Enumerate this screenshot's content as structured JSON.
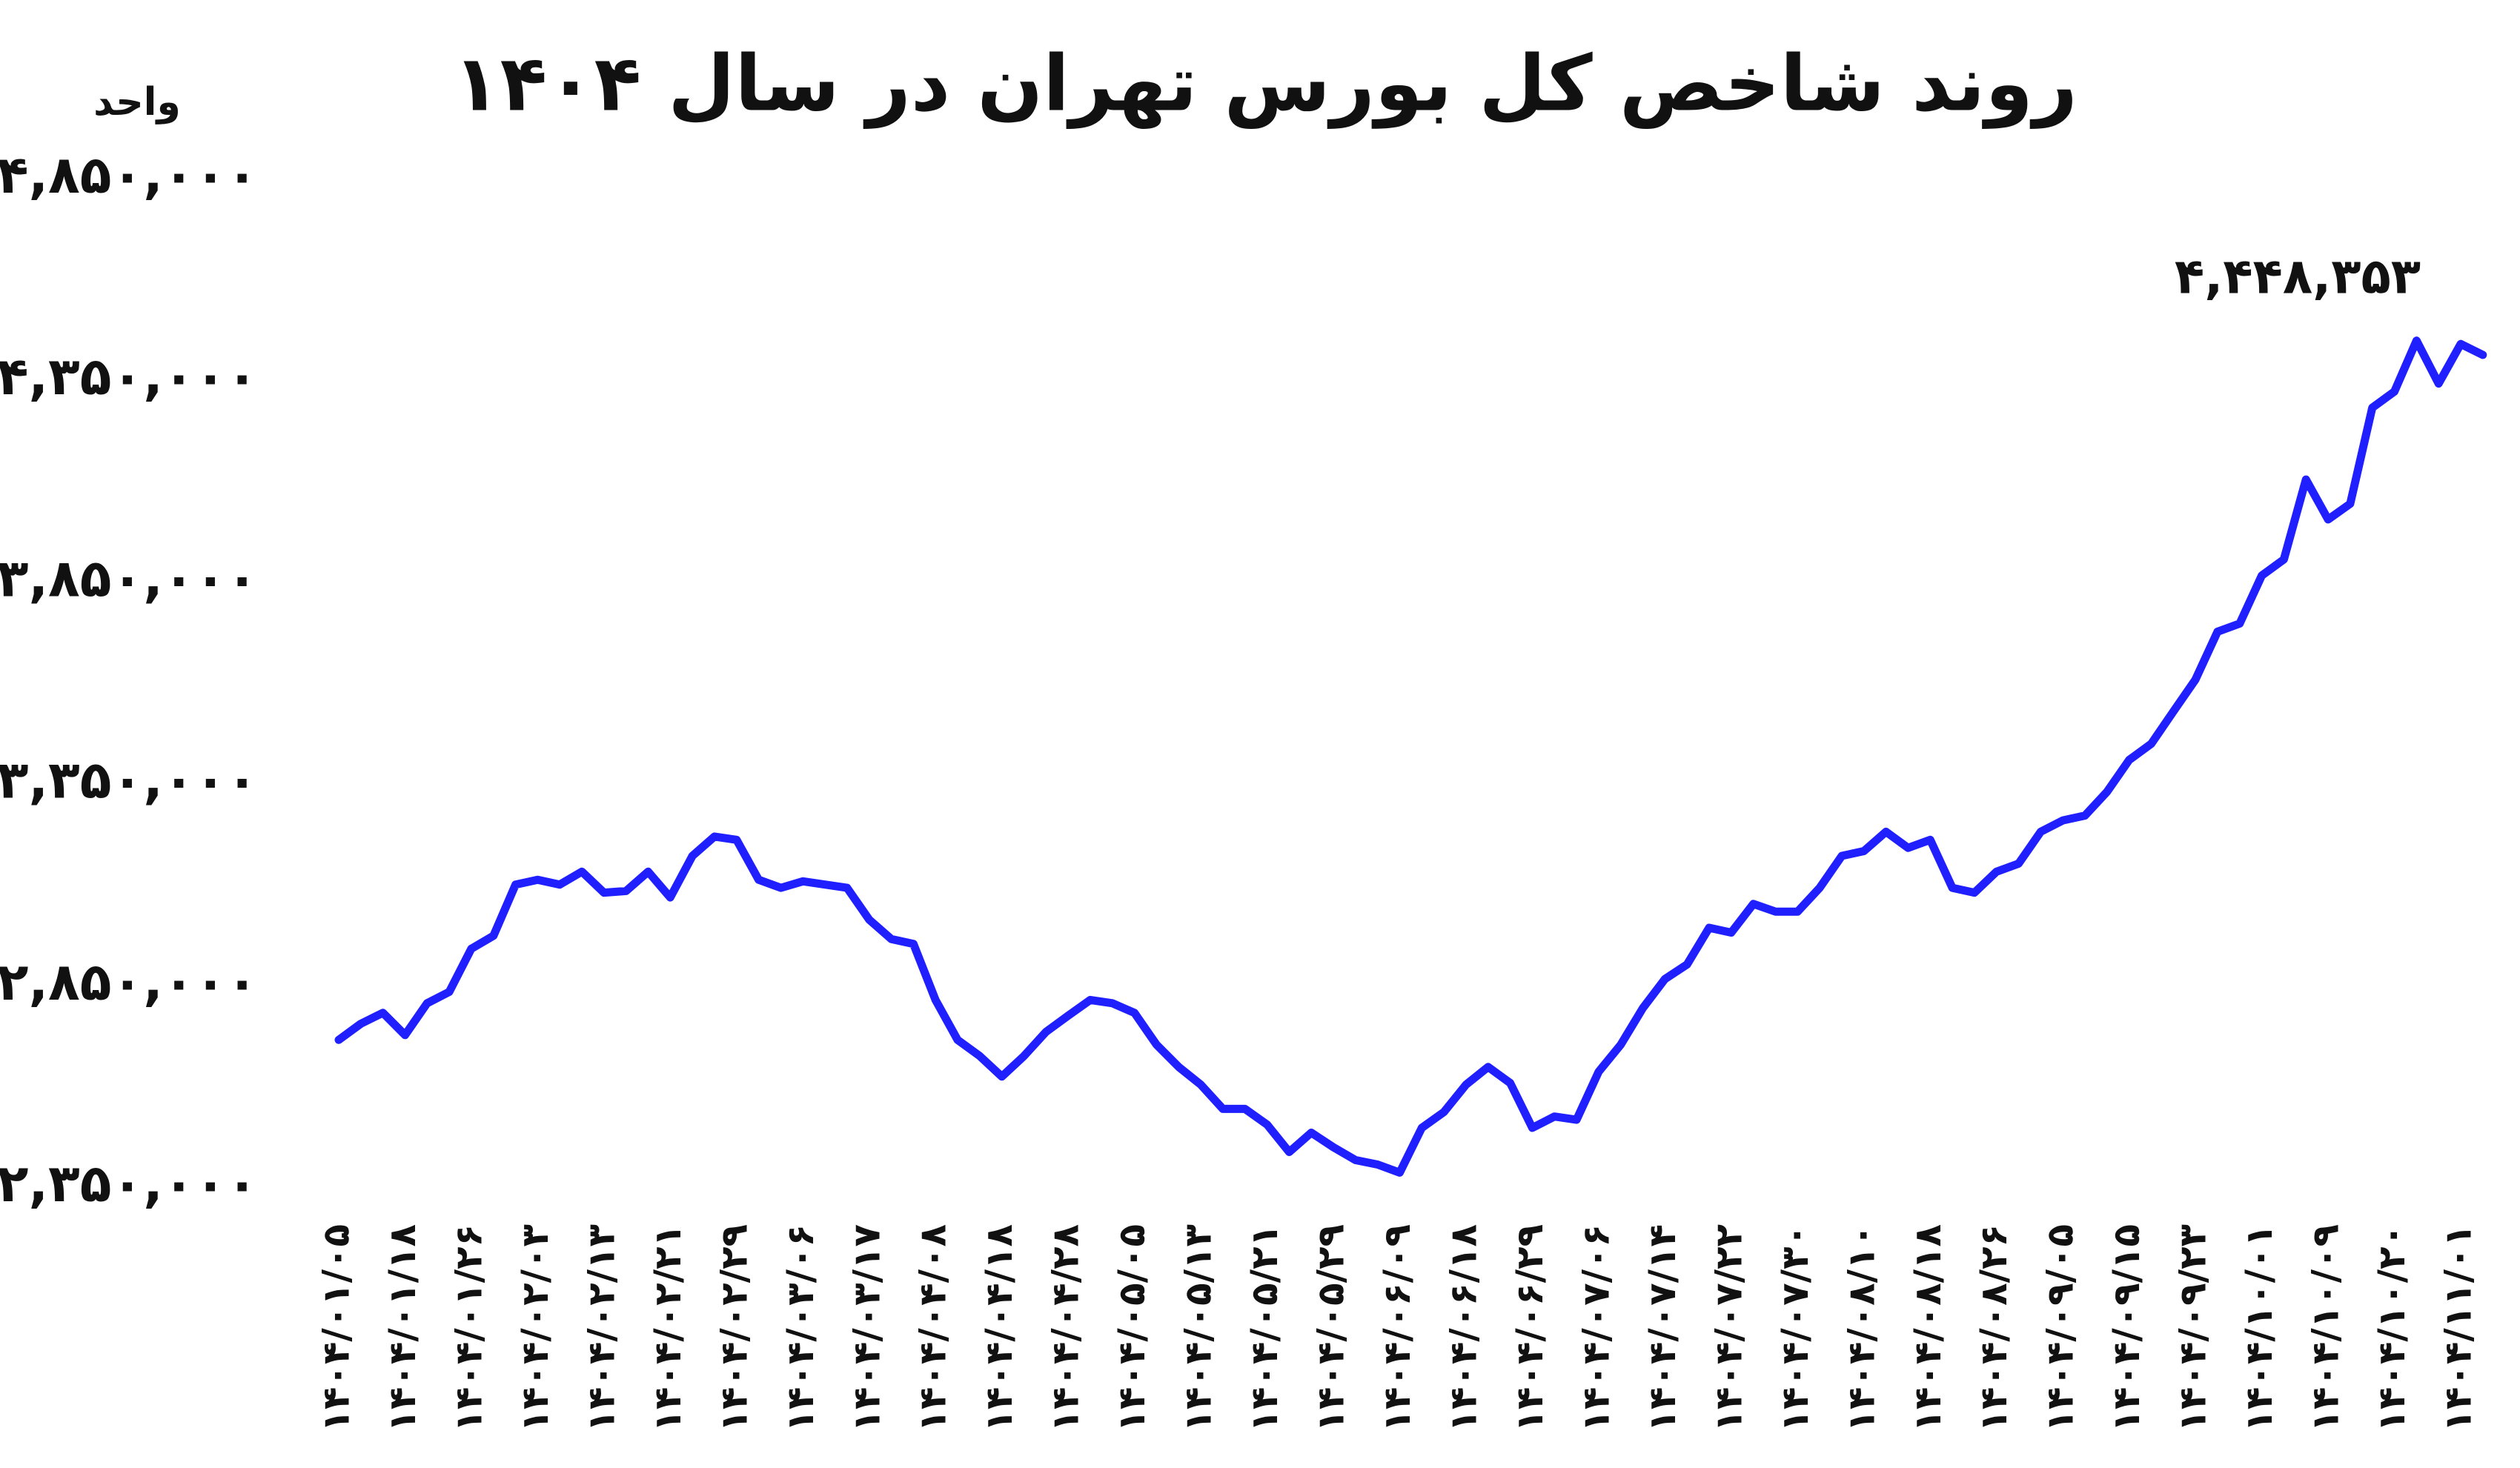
{
  "chart_data": {
    "type": "line",
    "title": "روند شاخص کل بورس تهران در سال ۱۴۰۴",
    "ylabel": "واحد",
    "categories": [
      "۱۴۰۴/۰۱/۰۵",
      null,
      null,
      "۱۴۰۴/۰۱/۱۸",
      null,
      null,
      "۱۴۰۴/۰۱/۲۶",
      null,
      null,
      "۱۴۰۴/۰۲/۰۳",
      null,
      null,
      "۱۴۰۴/۰۲/۱۳",
      null,
      null,
      "۱۴۰۴/۰۲/۲۱",
      null,
      null,
      "۱۴۰۴/۰۲/۲۹",
      null,
      null,
      "۱۴۰۴/۰۳/۰۶",
      null,
      null,
      "۱۴۰۴/۰۳/۱۷",
      null,
      null,
      "۱۴۰۴/۰۴/۰۸",
      null,
      null,
      "۱۴۰۴/۰۴/۱۸",
      null,
      null,
      "۱۴۰۴/۰۴/۲۸",
      null,
      null,
      "۱۴۰۴/۰۵/۰۵",
      null,
      null,
      "۱۴۰۴/۰۵/۱۳",
      null,
      null,
      "۱۴۰۴/۰۵/۲۱",
      null,
      null,
      "۱۴۰۴/۰۵/۲۹",
      null,
      null,
      "۱۴۰۴/۰۶/۰۹",
      null,
      null,
      "۱۴۰۴/۰۶/۱۸",
      null,
      null,
      "۱۴۰۴/۰۶/۲۹",
      null,
      null,
      "۱۴۰۴/۰۷/۰۶",
      null,
      null,
      "۱۴۰۴/۰۷/۱۴",
      null,
      null,
      "۱۴۰۴/۰۷/۲۲",
      null,
      null,
      "۱۴۰۴/۰۷/۳۰",
      null,
      null,
      "۱۴۰۴/۰۸/۱۰",
      null,
      null,
      "۱۴۰۴/۰۸/۱۸",
      null,
      null,
      "۱۴۰۴/۰۸/۲۶",
      null,
      null,
      "۱۴۰۴/۰۹/۰۵",
      null,
      null,
      "۱۴۰۴/۰۹/۱۵",
      null,
      null,
      "۱۴۰۴/۰۹/۲۳",
      null,
      null,
      "۱۴۰۴/۱۰/۰۱",
      null,
      null,
      "۱۴۰۴/۱۰/۰۹",
      null,
      null,
      "۱۴۰۴/۱۰/۲۰",
      null,
      null,
      "۱۴۰۴/۱۱/۰۱",
      null
    ],
    "series": [
      {
        "color": "#1f1fff",
        "values": [
          2715000,
          2755000,
          2782000,
          2727000,
          2806000,
          2834000,
          2941000,
          2973000,
          3100000,
          3112000,
          3100000,
          3132000,
          3080000,
          3084000,
          3132000,
          3068000,
          3171000,
          3219000,
          3211000,
          3112000,
          3092000,
          3108000,
          3100000,
          3092000,
          3013000,
          2965000,
          2953000,
          2814000,
          2715000,
          2675000,
          2624000,
          2675000,
          2735000,
          2775000,
          2814000,
          2806000,
          2782000,
          2703000,
          2648000,
          2604000,
          2544000,
          2544000,
          2505000,
          2437000,
          2485000,
          2449000,
          2417000,
          2406000,
          2386000,
          2497000,
          2536000,
          2604000,
          2648000,
          2608000,
          2497000,
          2525000,
          2517000,
          2636000,
          2703000,
          2794000,
          2866000,
          2902000,
          2993000,
          2981000,
          3052000,
          3033000,
          3033000,
          3092000,
          3171000,
          3183000,
          3231000,
          3191000,
          3211000,
          3092000,
          3080000,
          3132000,
          3152000,
          3231000,
          3259000,
          3271000,
          3330000,
          3409000,
          3449000,
          3529000,
          3608000,
          3727000,
          3747000,
          3866000,
          3906000,
          4104000,
          4005000,
          4044000,
          4282000,
          4322000,
          4448353,
          4342000,
          4440000,
          4413000
        ]
      }
    ],
    "annotation": {
      "value": 4448353,
      "label": "۴,۴۴۸,۳۵۳"
    },
    "ylim": [
      2350000,
      4850000
    ],
    "yticks": [
      {
        "value": 2350000,
        "label": "۲,۳۵۰,۰۰۰"
      },
      {
        "value": 2850000,
        "label": "۲,۸۵۰,۰۰۰"
      },
      {
        "value": 3350000,
        "label": "۳,۳۵۰,۰۰۰"
      },
      {
        "value": 3850000,
        "label": "۳,۸۵۰,۰۰۰"
      },
      {
        "value": 4350000,
        "label": "۴,۳۵۰,۰۰۰"
      },
      {
        "value": 4850000,
        "label": "۴,۸۵۰,۰۰۰"
      }
    ],
    "grid": false
  }
}
